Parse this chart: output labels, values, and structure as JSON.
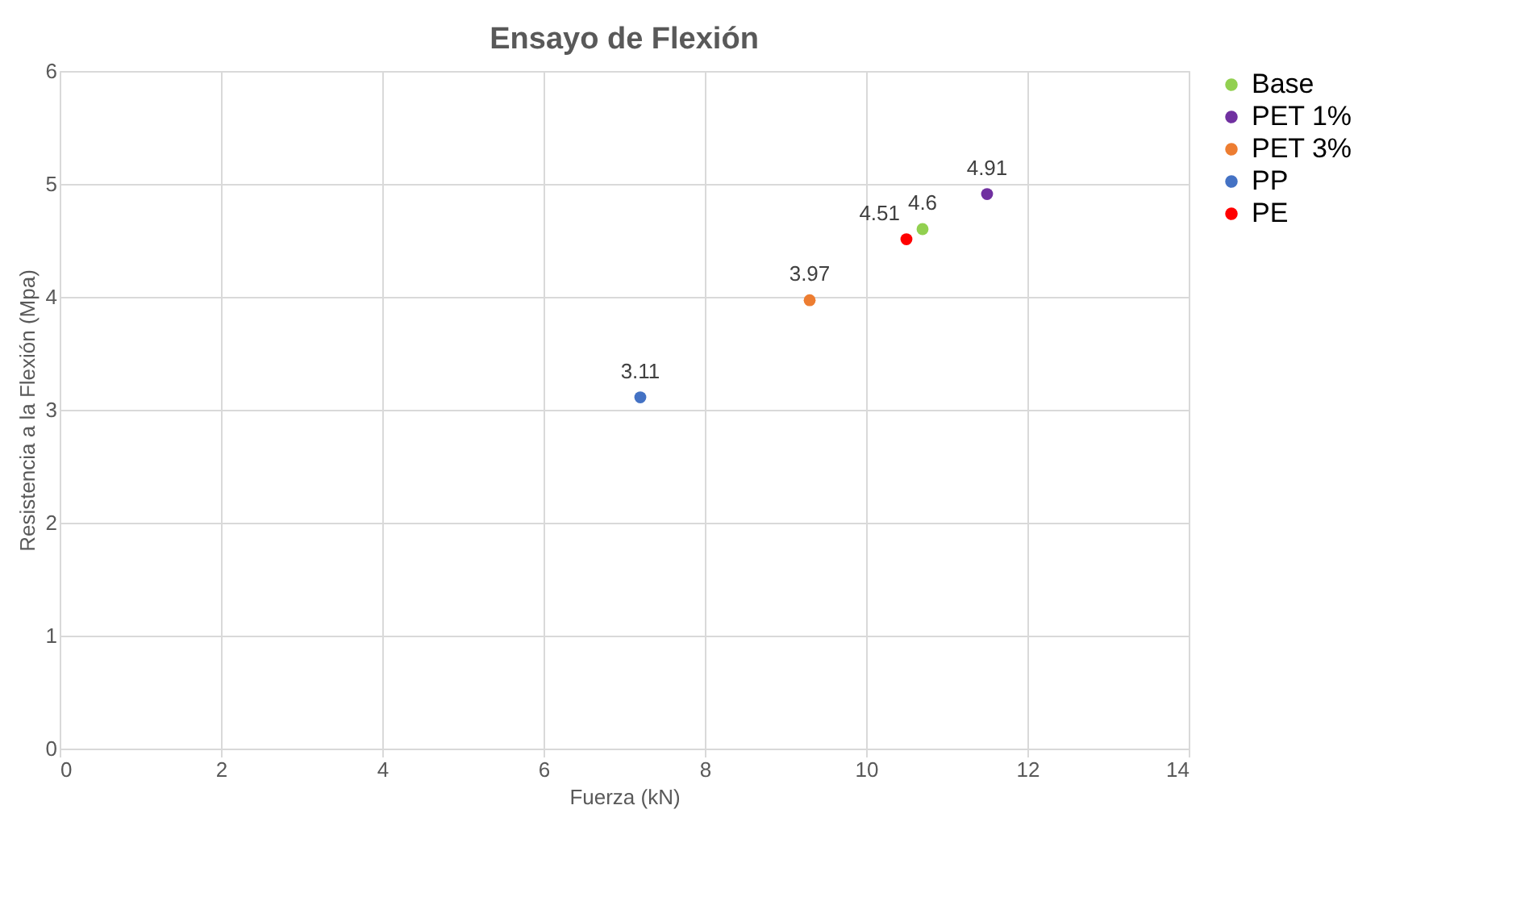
{
  "chart_data": {
    "type": "scatter",
    "title": "Ensayo de Flexión",
    "xlabel": "Fuerza (kN)",
    "ylabel": "Resistencia a la Flexión (Mpa)",
    "xlim": [
      0,
      14
    ],
    "xticks": [
      0,
      2,
      4,
      6,
      8,
      10,
      12,
      14
    ],
    "ylim": [
      0,
      6
    ],
    "yticks": [
      0,
      1,
      2,
      3,
      4,
      5,
      6
    ],
    "grid": true,
    "legend": "right",
    "marker": "circle",
    "data_labels": true,
    "series": [
      {
        "name": "Base",
        "color": "#92d050",
        "x": [
          10.7
        ],
        "values": [
          4.6
        ]
      },
      {
        "name": "PET 1%",
        "color": "#7030a0",
        "x": [
          11.5
        ],
        "values": [
          4.91
        ]
      },
      {
        "name": "PET 3%",
        "color": "#ed7d31",
        "x": [
          9.3
        ],
        "values": [
          3.97
        ]
      },
      {
        "name": "PP",
        "color": "#4472c4",
        "x": [
          7.2
        ],
        "values": [
          3.11
        ]
      },
      {
        "name": "PE",
        "color": "#ff0000",
        "x": [
          10.5
        ],
        "values": [
          4.51
        ]
      }
    ]
  }
}
